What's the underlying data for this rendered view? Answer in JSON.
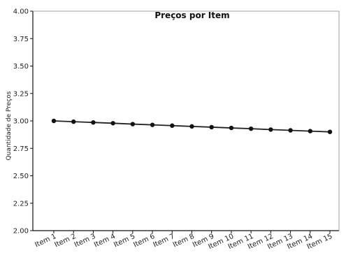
{
  "chart_data": {
    "type": "line",
    "title": "Preços por Item",
    "xlabel": "",
    "ylabel": "Quantidade de Preços",
    "categories": [
      "Item 1",
      "Item 2",
      "Item 3",
      "Item 4",
      "Item 5",
      "Item 6",
      "Item 7",
      "Item 8",
      "Item 9",
      "Item 10",
      "Item 11",
      "Item 12",
      "Item 13",
      "Item 14",
      "Item 15"
    ],
    "series": [
      {
        "values": [
          3.0,
          2.993,
          2.986,
          2.979,
          2.971,
          2.964,
          2.957,
          2.95,
          2.943,
          2.936,
          2.929,
          2.921,
          2.914,
          2.907,
          2.9
        ]
      }
    ],
    "ylim": [
      2.0,
      4.0
    ],
    "yticks": [
      "2.00",
      "2.25",
      "2.50",
      "2.75",
      "3.00",
      "3.25",
      "3.50",
      "3.75",
      "4.00"
    ],
    "grid": false,
    "colors": {
      "line": "#222222",
      "marker": "#111111",
      "axis": "#111111"
    }
  }
}
